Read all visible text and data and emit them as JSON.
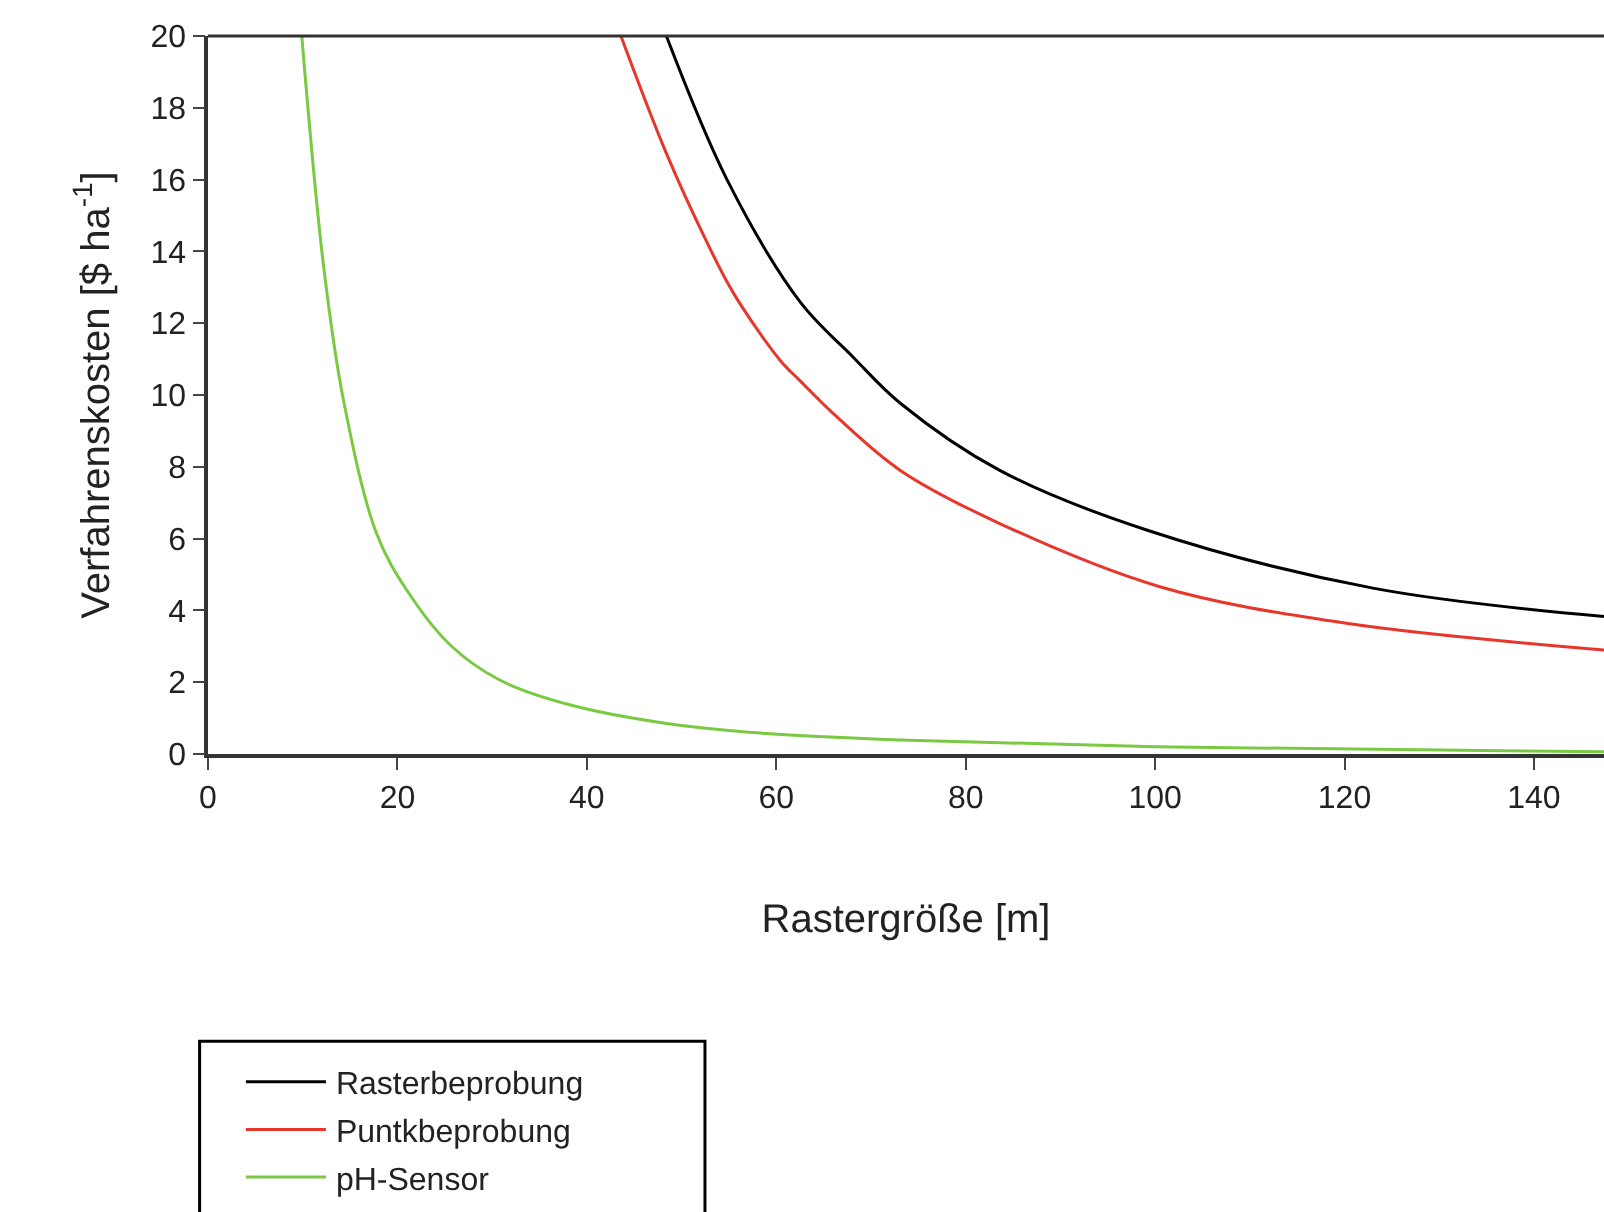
{
  "chart_data": {
    "type": "line",
    "xlabel": "Rastergröße [m]",
    "ylabel": "Verfahrenskosten [$ ha$^{-1}$]",
    "xlim": [
      0,
      147.4
    ],
    "ylim": [
      0,
      20
    ],
    "xticks": [
      0,
      20,
      40,
      60,
      80,
      100,
      120,
      140
    ],
    "yticks": [
      0,
      2,
      4,
      6,
      8,
      10,
      12,
      14,
      16,
      18,
      20
    ],
    "legend": "bottom left",
    "marker": "none",
    "line_style": "solid",
    "series": [
      {
        "name": "Rasterbeprobung",
        "color": "#000000",
        "x": [
          48.4,
          54.8,
          62.5,
          68.1,
          73.1,
          83.6,
          99.1,
          123.0,
          147.4
        ],
        "values": [
          20,
          16.0,
          12.6,
          11.06,
          9.77,
          7.9,
          6.24,
          4.62,
          3.83
        ]
      },
      {
        "name": "Puntkbeprobung",
        "color": "#e8362a",
        "x": [
          43.6,
          48.4,
          52.6,
          55.5,
          60.4,
          62.5,
          66.0,
          73.1,
          83.6,
          100.5,
          120.2,
          147.4
        ],
        "values": [
          20,
          16.73,
          14.3,
          12.83,
          10.97,
          10.4,
          9.49,
          7.9,
          6.42,
          4.66,
          3.64,
          2.9
        ]
      },
      {
        "name": "pH-Sensor",
        "color": "#7ac943",
        "x": [
          9.9,
          12.2,
          14.3,
          17.8,
          21.0,
          25.6,
          30.8,
          38.2,
          48.4,
          59.0,
          73.1,
          100,
          147.4
        ],
        "values": [
          20,
          13.6,
          9.86,
          6.14,
          4.56,
          3.03,
          2.06,
          1.37,
          0.85,
          0.57,
          0.39,
          0.2,
          0.06
        ]
      }
    ]
  }
}
